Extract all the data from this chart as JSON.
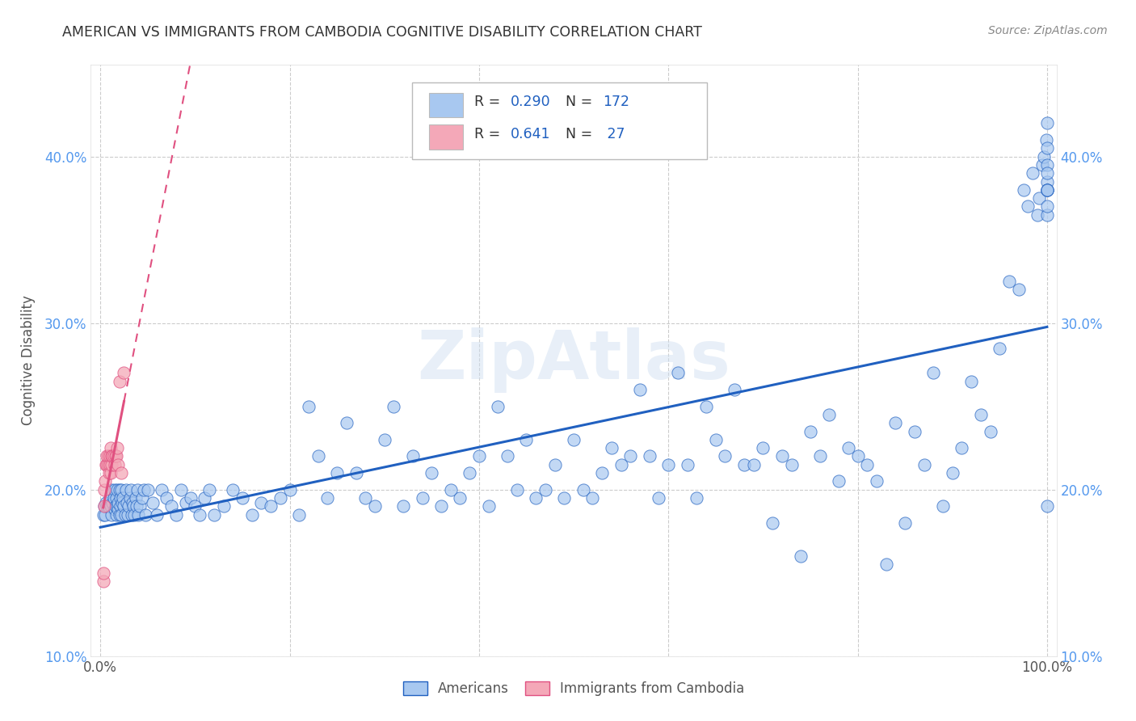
{
  "title": "AMERICAN VS IMMIGRANTS FROM CAMBODIA COGNITIVE DISABILITY CORRELATION CHART",
  "source": "Source: ZipAtlas.com",
  "ylabel": "Cognitive Disability",
  "xlim": [
    -0.01,
    1.01
  ],
  "ylim": [
    0.12,
    0.455
  ],
  "x_ticks": [
    0.0,
    0.2,
    0.4,
    0.6,
    0.8,
    1.0
  ],
  "x_tick_labels": [
    "0.0%",
    "",
    "",
    "",
    "",
    "100.0%"
  ],
  "y_ticks": [
    0.1,
    0.2,
    0.3,
    0.4
  ],
  "y_tick_labels": [
    "10.0%",
    "20.0%",
    "30.0%",
    "40.0%"
  ],
  "americans_color": "#a8c8f0",
  "cambodia_color": "#f4a8b8",
  "americans_line_color": "#2060c0",
  "cambodia_line_color": "#e05080",
  "legend_text_color": "#2060c0",
  "legend_label_color": "#333333",
  "grid_color": "#cccccc",
  "watermark": "ZipAtlas",
  "am_x": [
    0.003,
    0.004,
    0.005,
    0.006,
    0.007,
    0.008,
    0.009,
    0.01,
    0.011,
    0.012,
    0.012,
    0.013,
    0.014,
    0.015,
    0.015,
    0.016,
    0.017,
    0.017,
    0.018,
    0.018,
    0.019,
    0.019,
    0.02,
    0.02,
    0.021,
    0.021,
    0.022,
    0.022,
    0.023,
    0.024,
    0.025,
    0.026,
    0.027,
    0.028,
    0.029,
    0.03,
    0.031,
    0.032,
    0.033,
    0.034,
    0.035,
    0.036,
    0.037,
    0.038,
    0.039,
    0.04,
    0.042,
    0.044,
    0.046,
    0.048,
    0.05,
    0.055,
    0.06,
    0.065,
    0.07,
    0.075,
    0.08,
    0.085,
    0.09,
    0.095,
    0.1,
    0.105,
    0.11,
    0.115,
    0.12,
    0.13,
    0.14,
    0.15,
    0.16,
    0.17,
    0.18,
    0.19,
    0.2,
    0.21,
    0.22,
    0.23,
    0.24,
    0.25,
    0.26,
    0.27,
    0.28,
    0.29,
    0.3,
    0.31,
    0.32,
    0.33,
    0.34,
    0.35,
    0.36,
    0.37,
    0.38,
    0.39,
    0.4,
    0.41,
    0.42,
    0.43,
    0.44,
    0.45,
    0.46,
    0.47,
    0.48,
    0.49,
    0.5,
    0.51,
    0.52,
    0.53,
    0.54,
    0.55,
    0.56,
    0.57,
    0.58,
    0.59,
    0.6,
    0.61,
    0.62,
    0.63,
    0.64,
    0.65,
    0.66,
    0.67,
    0.68,
    0.69,
    0.7,
    0.71,
    0.72,
    0.73,
    0.74,
    0.75,
    0.76,
    0.77,
    0.78,
    0.79,
    0.8,
    0.81,
    0.82,
    0.83,
    0.84,
    0.85,
    0.86,
    0.87,
    0.88,
    0.89,
    0.9,
    0.91,
    0.92,
    0.93,
    0.94,
    0.95,
    0.96,
    0.97,
    0.975,
    0.98,
    0.985,
    0.99,
    0.992,
    0.995,
    0.997,
    0.999,
    1.0,
    1.0,
    1.0,
    1.0,
    1.0,
    1.0,
    1.0,
    1.0,
    1.0,
    1.0,
    1.0,
    1.0
  ],
  "am_y": [
    0.185,
    0.19,
    0.185,
    0.192,
    0.19,
    0.19,
    0.192,
    0.195,
    0.19,
    0.185,
    0.2,
    0.192,
    0.195,
    0.188,
    0.2,
    0.19,
    0.185,
    0.195,
    0.19,
    0.2,
    0.188,
    0.192,
    0.185,
    0.2,
    0.19,
    0.195,
    0.185,
    0.2,
    0.192,
    0.195,
    0.19,
    0.185,
    0.2,
    0.192,
    0.185,
    0.19,
    0.195,
    0.2,
    0.185,
    0.192,
    0.19,
    0.185,
    0.195,
    0.19,
    0.2,
    0.185,
    0.19,
    0.195,
    0.2,
    0.185,
    0.2,
    0.192,
    0.185,
    0.2,
    0.195,
    0.19,
    0.185,
    0.2,
    0.192,
    0.195,
    0.19,
    0.185,
    0.195,
    0.2,
    0.185,
    0.19,
    0.2,
    0.195,
    0.185,
    0.192,
    0.19,
    0.195,
    0.2,
    0.185,
    0.25,
    0.22,
    0.195,
    0.21,
    0.24,
    0.21,
    0.195,
    0.19,
    0.23,
    0.25,
    0.19,
    0.22,
    0.195,
    0.21,
    0.19,
    0.2,
    0.195,
    0.21,
    0.22,
    0.19,
    0.25,
    0.22,
    0.2,
    0.23,
    0.195,
    0.2,
    0.215,
    0.195,
    0.23,
    0.2,
    0.195,
    0.21,
    0.225,
    0.215,
    0.22,
    0.26,
    0.22,
    0.195,
    0.215,
    0.27,
    0.215,
    0.195,
    0.25,
    0.23,
    0.22,
    0.26,
    0.215,
    0.215,
    0.225,
    0.18,
    0.22,
    0.215,
    0.16,
    0.235,
    0.22,
    0.245,
    0.205,
    0.225,
    0.22,
    0.215,
    0.205,
    0.155,
    0.24,
    0.18,
    0.235,
    0.215,
    0.27,
    0.19,
    0.21,
    0.225,
    0.265,
    0.245,
    0.235,
    0.285,
    0.325,
    0.32,
    0.38,
    0.37,
    0.39,
    0.365,
    0.375,
    0.395,
    0.4,
    0.41,
    0.385,
    0.38,
    0.365,
    0.395,
    0.405,
    0.38,
    0.38,
    0.42,
    0.37,
    0.38,
    0.39,
    0.19
  ],
  "cam_x": [
    0.003,
    0.003,
    0.004,
    0.004,
    0.005,
    0.006,
    0.007,
    0.007,
    0.008,
    0.008,
    0.009,
    0.01,
    0.01,
    0.011,
    0.011,
    0.012,
    0.012,
    0.013,
    0.014,
    0.015,
    0.016,
    0.017,
    0.018,
    0.019,
    0.02,
    0.022,
    0.025
  ],
  "cam_y": [
    0.145,
    0.15,
    0.19,
    0.2,
    0.205,
    0.215,
    0.215,
    0.22,
    0.215,
    0.22,
    0.21,
    0.215,
    0.22,
    0.21,
    0.225,
    0.215,
    0.22,
    0.22,
    0.22,
    0.215,
    0.22,
    0.22,
    0.225,
    0.215,
    0.265,
    0.21,
    0.27
  ]
}
